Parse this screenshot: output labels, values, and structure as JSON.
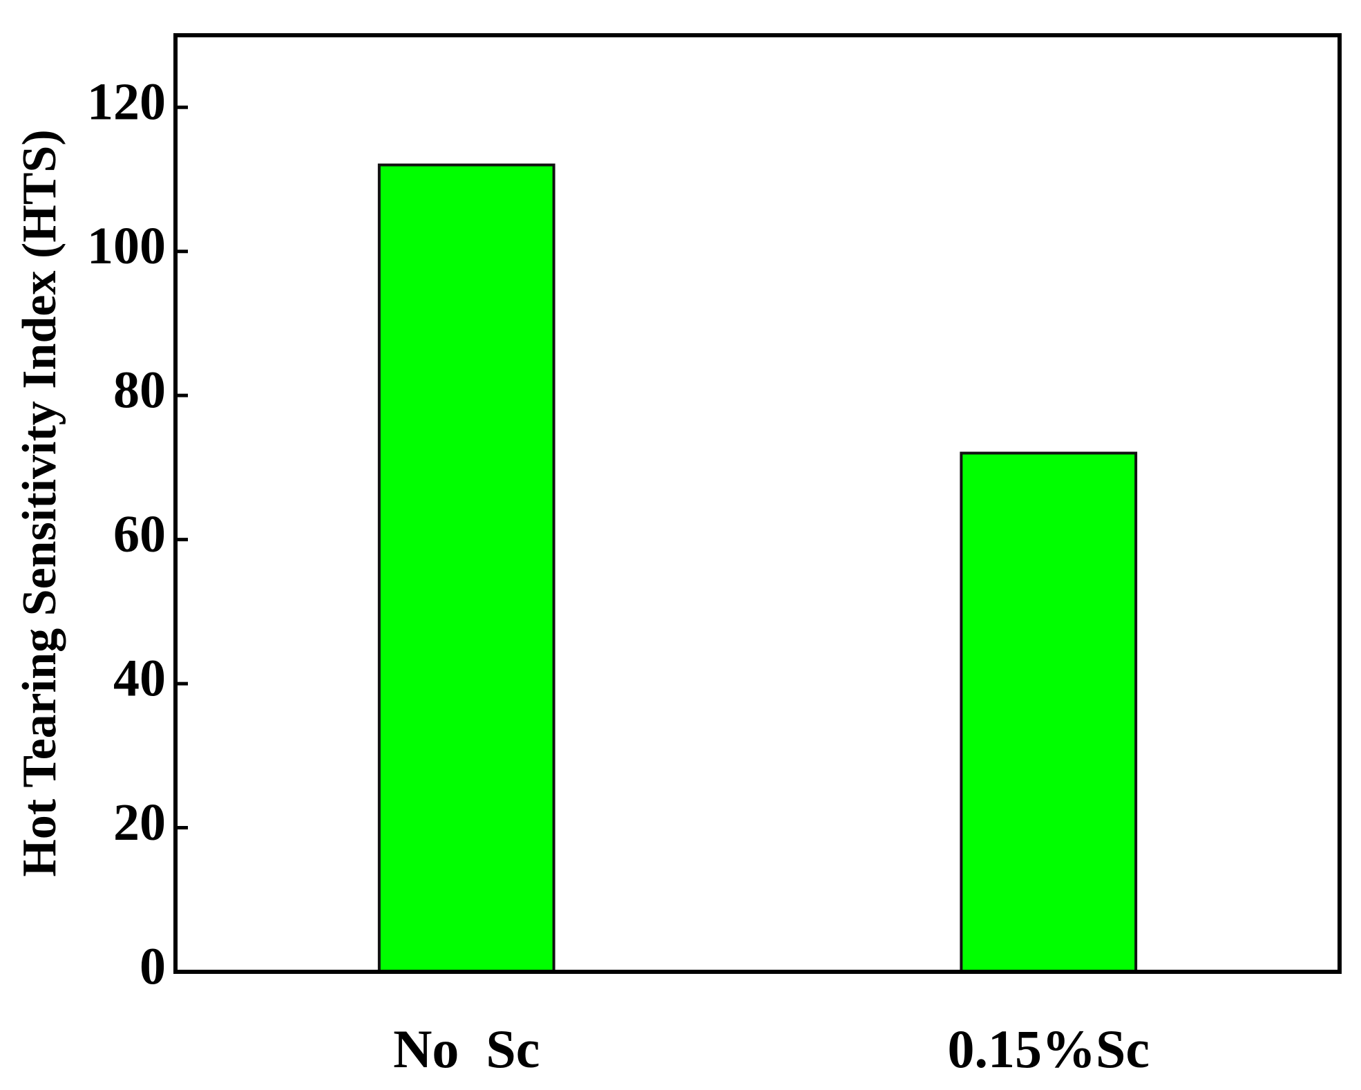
{
  "chart_data": {
    "type": "bar",
    "y_label": "Hot Tearing Sensitivity Index (HTS)",
    "categories": [
      "No  Sc",
      "0.15%Sc"
    ],
    "values": [
      112,
      72
    ],
    "color": "#00ff00",
    "ylim": [
      0,
      130
    ],
    "yticks": [
      0,
      20,
      40,
      60,
      80,
      100,
      120
    ],
    "grid": false
  }
}
